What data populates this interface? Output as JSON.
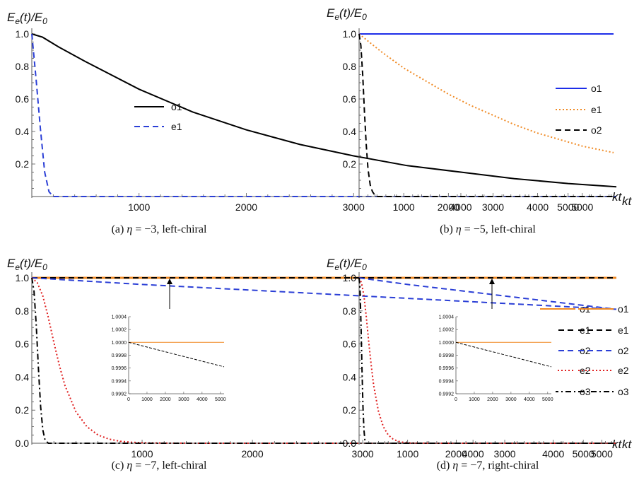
{
  "chart_data": [
    {
      "type": "line",
      "caption": "(a) η = −3, left-chiral",
      "ylabel": "E_e(t)/E_0",
      "xlabel": "kt",
      "x_ticks": [
        "1000",
        "2000",
        "3000",
        "4000",
        "5000"
      ],
      "y_ticks": [
        "0.2",
        "0.4",
        "0.6",
        "0.8",
        "1.0"
      ],
      "xlim": [
        0,
        5450
      ],
      "ylim": [
        0,
        1.0
      ],
      "series": [
        {
          "name": "o1",
          "color": "#000000",
          "dash": "solid",
          "x": [
            0,
            100,
            250,
            500,
            1000,
            1500,
            2000,
            2500,
            3000,
            3500,
            4000,
            4500,
            5000,
            5450
          ],
          "y": [
            1.0,
            0.98,
            0.92,
            0.83,
            0.66,
            0.52,
            0.41,
            0.32,
            0.25,
            0.19,
            0.15,
            0.11,
            0.08,
            0.06
          ]
        },
        {
          "name": "e1",
          "color": "#2b3fd6",
          "dash": "dashed",
          "x": [
            0,
            40,
            80,
            120,
            160,
            200,
            400,
            1000,
            3000,
            5450
          ],
          "y": [
            1.0,
            0.72,
            0.42,
            0.15,
            0.03,
            0.0,
            0.0,
            0.0,
            0.0,
            0.0
          ]
        }
      ]
    },
    {
      "type": "line",
      "caption": "(b) η = −5, left-chiral",
      "ylabel": "E_e(t)/E_0",
      "xlabel": "kt",
      "x_ticks": [
        "1000",
        "2000",
        "3000",
        "4000",
        "5000"
      ],
      "y_ticks": [
        "0.2",
        "0.4",
        "0.6",
        "0.8",
        "1.0"
      ],
      "xlim": [
        0,
        5700
      ],
      "ylim": [
        0,
        1.0
      ],
      "series": [
        {
          "name": "o1",
          "color": "#1d2ee8",
          "dash": "solid",
          "x": [
            0,
            1000,
            2000,
            3000,
            4000,
            5000,
            5700
          ],
          "y": [
            1.0,
            1.0,
            1.0,
            1.0,
            1.0,
            1.0,
            1.0
          ]
        },
        {
          "name": "e1",
          "color": "#f08a24",
          "dash": "dotted",
          "x": [
            0,
            500,
            1000,
            1500,
            2000,
            2500,
            3000,
            3500,
            4000,
            4500,
            5000,
            5700
          ],
          "y": [
            1.0,
            0.89,
            0.79,
            0.71,
            0.63,
            0.56,
            0.5,
            0.44,
            0.39,
            0.35,
            0.31,
            0.27
          ]
        },
        {
          "name": "o2",
          "color": "#000000",
          "dash": "dashed",
          "x": [
            0,
            40,
            80,
            120,
            160,
            200,
            250,
            300,
            350,
            400,
            600,
            1000,
            5700
          ],
          "y": [
            1.0,
            0.93,
            0.75,
            0.52,
            0.32,
            0.17,
            0.07,
            0.03,
            0.01,
            0.0,
            0.0,
            0.0,
            0.0
          ]
        }
      ]
    },
    {
      "type": "line",
      "caption": "(c) η = −7, left-chiral",
      "ylabel": "E_e(t)/E_0",
      "xlabel": "kt",
      "x_ticks": [
        "1000",
        "2000",
        "3000",
        "4000",
        "5000"
      ],
      "y_ticks": [
        "0.0",
        "0.2",
        "0.4",
        "0.6",
        "0.8",
        "1.0"
      ],
      "xlim": [
        0,
        5300
      ],
      "ylim": [
        0,
        1.0
      ],
      "series": [
        {
          "name": "o1",
          "color": "#f08a24",
          "dash": "solid",
          "x": [
            0,
            5300
          ],
          "y": [
            1.0,
            1.0
          ]
        },
        {
          "name": "e1",
          "color": "#000000",
          "dash": "dashed",
          "x": [
            0,
            5300
          ],
          "y": [
            1.0,
            1.0
          ]
        },
        {
          "name": "o2",
          "color": "#2b3fd6",
          "dash": "dashed",
          "x": [
            0,
            1000,
            2000,
            3000,
            4000,
            5000,
            5300
          ],
          "y": [
            1.0,
            0.96,
            0.925,
            0.89,
            0.855,
            0.82,
            0.81
          ]
        },
        {
          "name": "e2",
          "color": "#e02020",
          "dash": "dotted",
          "x": [
            0,
            50,
            100,
            150,
            200,
            250,
            300,
            400,
            500,
            600,
            700,
            800,
            900,
            1000,
            1200,
            1500,
            5300
          ],
          "y": [
            1.0,
            0.97,
            0.89,
            0.76,
            0.61,
            0.47,
            0.35,
            0.19,
            0.1,
            0.05,
            0.025,
            0.012,
            0.006,
            0.003,
            0.001,
            0.0,
            0.0
          ]
        },
        {
          "name": "o3",
          "color": "#000000",
          "dash": "dashdot",
          "x": [
            0,
            20,
            40,
            60,
            80,
            100,
            120,
            150,
            200,
            5300
          ],
          "y": [
            1.0,
            0.92,
            0.72,
            0.45,
            0.22,
            0.08,
            0.02,
            0.0,
            0.0,
            0.0
          ]
        }
      ],
      "inset": {
        "x_ticks": [
          "0",
          "1000",
          "2000",
          "3000",
          "4000",
          "5000"
        ],
        "y_ticks": [
          "0.9992",
          "0.9994",
          "0.9996",
          "0.9998",
          "1.0000",
          "1.0002",
          "1.0004"
        ],
        "xlim": [
          0,
          5200
        ],
        "ylim": [
          0.9992,
          1.0004
        ],
        "series": [
          {
            "name": "o1",
            "color": "#f08a24",
            "dash": "solid",
            "x": [
              0,
              5200
            ],
            "y": [
              1.0,
              1.0
            ]
          },
          {
            "name": "e1",
            "color": "#000000",
            "dash": "dashed",
            "x": [
              0,
              5200
            ],
            "y": [
              1.0,
              0.99962
            ]
          }
        ]
      }
    },
    {
      "type": "line",
      "caption": "(d) η = −7, right-chiral",
      "ylabel": "E_e(t)/E_0",
      "xlabel": "kt",
      "x_ticks": [
        "1000",
        "2000",
        "3000",
        "4000",
        "5000"
      ],
      "y_ticks": [
        "0.0",
        "0.2",
        "0.4",
        "0.6",
        "0.8",
        "1.0"
      ],
      "xlim": [
        0,
        5300
      ],
      "ylim": [
        0,
        1.0
      ],
      "series": [
        {
          "name": "o1",
          "color": "#f08a24",
          "dash": "solid",
          "x": [
            0,
            5300
          ],
          "y": [
            1.0,
            1.0
          ]
        },
        {
          "name": "e1",
          "color": "#000000",
          "dash": "dashed",
          "x": [
            0,
            5300
          ],
          "y": [
            1.0,
            1.0
          ]
        },
        {
          "name": "o2",
          "color": "#2b3fd6",
          "dash": "dashed",
          "x": [
            0,
            1000,
            2000,
            3000,
            4000,
            5000,
            5300
          ],
          "y": [
            1.0,
            0.96,
            0.925,
            0.89,
            0.855,
            0.82,
            0.81
          ]
        },
        {
          "name": "e2",
          "color": "#e02020",
          "dash": "dotted",
          "x": [
            0,
            50,
            100,
            150,
            200,
            250,
            300,
            400,
            500,
            600,
            700,
            800,
            900,
            1000,
            1200,
            1500,
            5300
          ],
          "y": [
            1.0,
            0.97,
            0.89,
            0.76,
            0.61,
            0.47,
            0.35,
            0.19,
            0.1,
            0.05,
            0.025,
            0.012,
            0.006,
            0.003,
            0.001,
            0.0,
            0.0
          ]
        },
        {
          "name": "o3",
          "color": "#000000",
          "dash": "dashdot",
          "x": [
            0,
            20,
            40,
            60,
            80,
            100,
            120,
            150,
            200,
            5300
          ],
          "y": [
            1.0,
            0.92,
            0.72,
            0.45,
            0.22,
            0.08,
            0.02,
            0.0,
            0.0,
            0.0
          ]
        }
      ],
      "inset": {
        "x_ticks": [
          "0",
          "1000",
          "2000",
          "3000",
          "4000",
          "5000"
        ],
        "y_ticks": [
          "0.9992",
          "0.9994",
          "0.9996",
          "0.9998",
          "1.0000",
          "1.0002",
          "1.0004"
        ],
        "xlim": [
          0,
          5200
        ],
        "ylim": [
          0.9992,
          1.0004
        ],
        "series": [
          {
            "name": "o1",
            "color": "#f08a24",
            "dash": "solid",
            "x": [
              0,
              5200
            ],
            "y": [
              1.0,
              1.0
            ]
          },
          {
            "name": "e1",
            "color": "#000000",
            "dash": "dashed",
            "x": [
              0,
              5200
            ],
            "y": [
              1.0,
              0.99962
            ]
          }
        ]
      }
    }
  ]
}
